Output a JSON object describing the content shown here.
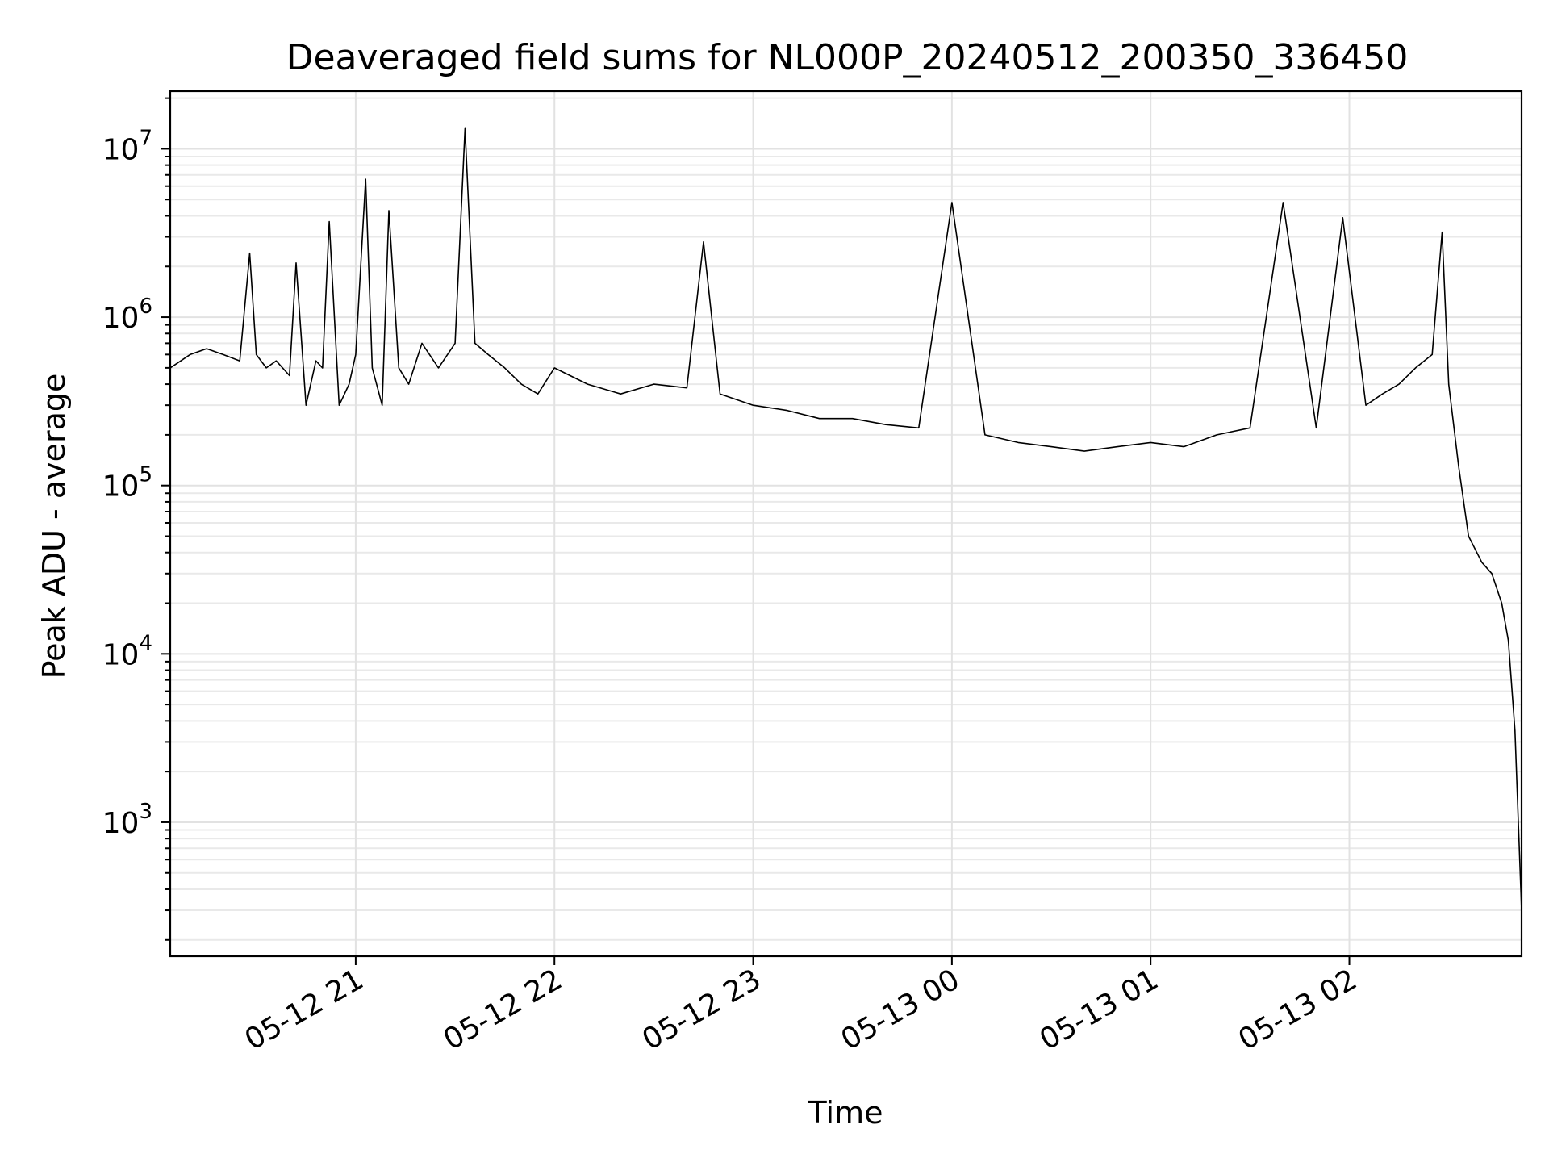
{
  "chart_data": {
    "type": "line",
    "title": "Deaveraged field sums for NL000P_20240512_200350_336450",
    "xlabel": "Time",
    "ylabel": "Peak ADU - average",
    "yscale": "log",
    "ylim": [
      160,
      22000000
    ],
    "xlim": [
      "05-12 20:04",
      "05-13 02:52"
    ],
    "grid": true,
    "line_color": "#000000",
    "grid_color": "#e2e2e2",
    "x_ticks": [
      {
        "label": "05-12 21",
        "time": "05-12 21:00"
      },
      {
        "label": "05-12 22",
        "time": "05-12 22:00"
      },
      {
        "label": "05-12 23",
        "time": "05-12 23:00"
      },
      {
        "label": "05-13 00",
        "time": "05-13 00:00"
      },
      {
        "label": "05-13 01",
        "time": "05-13 01:00"
      },
      {
        "label": "05-13 02",
        "time": "05-13 02:00"
      }
    ],
    "y_ticks": [
      {
        "base": "10",
        "exp": "3",
        "value": 1000
      },
      {
        "base": "10",
        "exp": "4",
        "value": 10000
      },
      {
        "base": "10",
        "exp": "5",
        "value": 100000
      },
      {
        "base": "10",
        "exp": "6",
        "value": 1000000
      },
      {
        "base": "10",
        "exp": "7",
        "value": 10000000
      }
    ],
    "series": [
      {
        "x": [
          "05-12 20:04",
          "05-12 20:10",
          "05-12 20:15",
          "05-12 20:20",
          "05-12 20:25",
          "05-12 20:28",
          "05-12 20:30",
          "05-12 20:33",
          "05-12 20:36",
          "05-12 20:40",
          "05-12 20:42",
          "05-12 20:45",
          "05-12 20:48",
          "05-12 20:50",
          "05-12 20:52",
          "05-12 20:55",
          "05-12 20:58",
          "05-12 21:00",
          "05-12 21:03",
          "05-12 21:05",
          "05-12 21:08",
          "05-12 21:10",
          "05-12 21:13",
          "05-12 21:16",
          "05-12 21:20",
          "05-12 21:25",
          "05-12 21:30",
          "05-12 21:33",
          "05-12 21:36",
          "05-12 21:40",
          "05-12 21:45",
          "05-12 21:50",
          "05-12 21:55",
          "05-12 22:00",
          "05-12 22:10",
          "05-12 22:20",
          "05-12 22:30",
          "05-12 22:40",
          "05-12 22:45",
          "05-12 22:50",
          "05-12 23:00",
          "05-12 23:10",
          "05-12 23:20",
          "05-12 23:30",
          "05-12 23:40",
          "05-12 23:50",
          "05-13 00:00",
          "05-13 00:10",
          "05-13 00:20",
          "05-13 00:30",
          "05-13 00:40",
          "05-13 00:50",
          "05-13 01:00",
          "05-13 01:10",
          "05-13 01:20",
          "05-13 01:30",
          "05-13 01:40",
          "05-13 01:50",
          "05-13 01:58",
          "05-13 02:05",
          "05-13 02:10",
          "05-13 02:15",
          "05-13 02:20",
          "05-13 02:25",
          "05-13 02:28",
          "05-13 02:30",
          "05-13 02:33",
          "05-13 02:36",
          "05-13 02:40",
          "05-13 02:43",
          "05-13 02:46",
          "05-13 02:48",
          "05-13 02:50",
          "05-13 02:52"
        ],
        "values": [
          500000,
          600000,
          650000,
          600000,
          550000,
          2400000,
          600000,
          500000,
          550000,
          450000,
          2100000,
          300000,
          550000,
          500000,
          3700000,
          300000,
          400000,
          600000,
          6600000,
          500000,
          300000,
          4300000,
          500000,
          400000,
          700000,
          500000,
          700000,
          13200000,
          700000,
          600000,
          500000,
          400000,
          350000,
          500000,
          400000,
          350000,
          400000,
          380000,
          2800000,
          350000,
          300000,
          280000,
          250000,
          250000,
          230000,
          220000,
          4800000,
          200000,
          180000,
          170000,
          160000,
          170000,
          180000,
          170000,
          200000,
          220000,
          4800000,
          220000,
          3900000,
          300000,
          350000,
          400000,
          500000,
          600000,
          3200000,
          400000,
          130000,
          50000,
          35000,
          30000,
          20000,
          12000,
          3500,
          300
        ]
      }
    ]
  }
}
